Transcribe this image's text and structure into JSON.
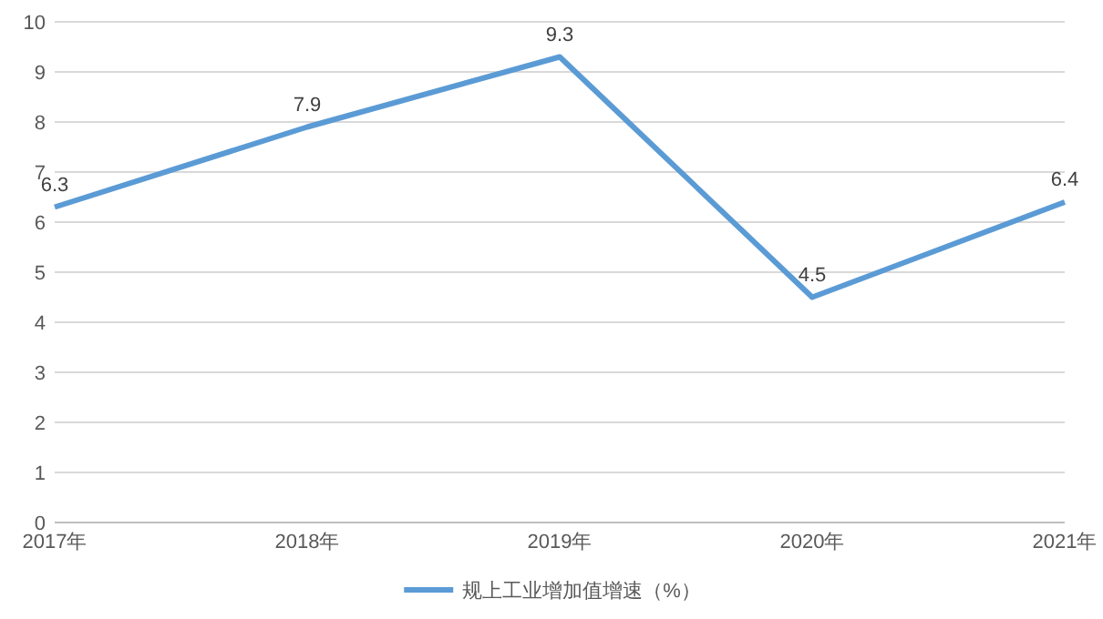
{
  "chart_data": {
    "type": "line",
    "categories": [
      "2017年",
      "2018年",
      "2019年",
      "2020年",
      "2021年"
    ],
    "series": [
      {
        "name": "规上工业增加值增速（%）",
        "color": "#5b9bd5",
        "values": [
          6.3,
          7.9,
          9.3,
          4.5,
          6.4
        ]
      }
    ],
    "ylim": [
      0,
      10
    ],
    "yticks": [
      0,
      1,
      2,
      3,
      4,
      5,
      6,
      7,
      8,
      9,
      10
    ],
    "grid": "y",
    "legend": "bottom",
    "data_labels": true,
    "line_style": "solid"
  }
}
